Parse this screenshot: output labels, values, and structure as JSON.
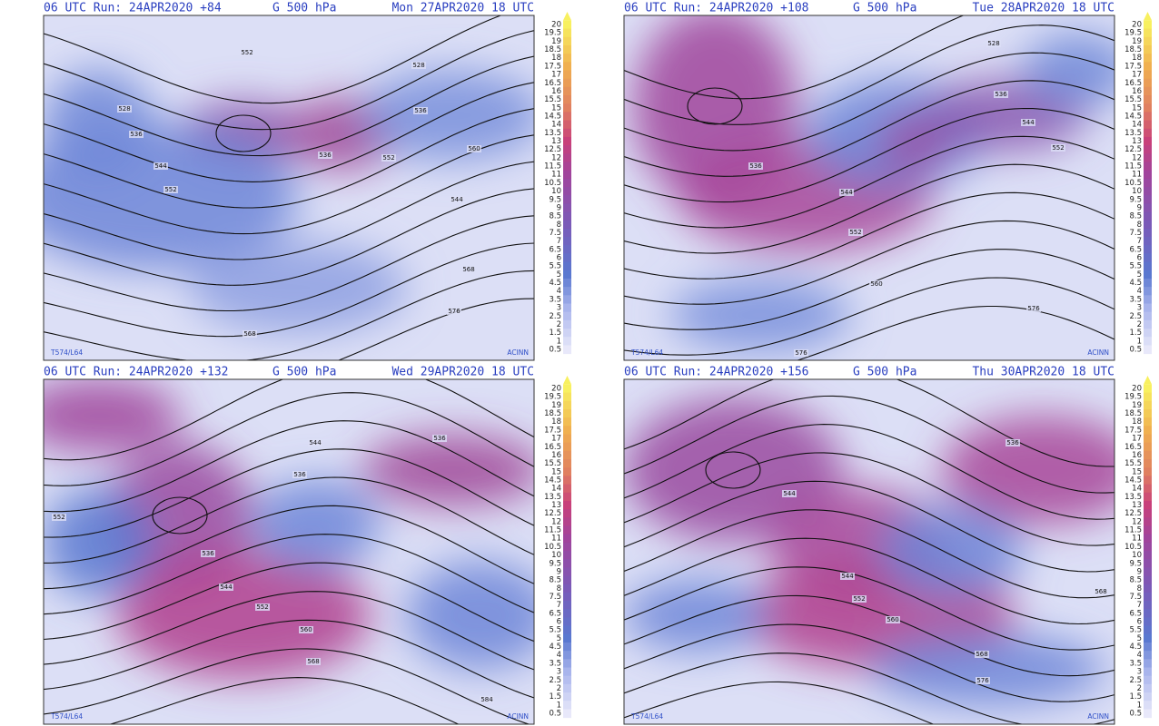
{
  "panels": [
    {
      "run": "06 UTC Run: 24APR2020 +84",
      "field": "G 500 hPa",
      "valid": "Mon 27APR2020 18 UTC",
      "contour_labels": [
        552,
        528,
        536,
        544,
        552,
        528,
        536,
        536,
        552,
        544,
        560,
        568,
        576,
        568
      ],
      "model": "T574/L64",
      "source": "ACINN"
    },
    {
      "run": "06 UTC Run: 24APR2020 +108",
      "field": "G 500 hPa",
      "valid": "Tue 28APR2020 18 UTC",
      "contour_labels": [
        528,
        536,
        544,
        552,
        536,
        544,
        552,
        560,
        576,
        576
      ],
      "model": "T574/L64",
      "source": "ACINN"
    },
    {
      "run": "06 UTC Run: 24APR2020 +132",
      "field": "G 500 hPa",
      "valid": "Wed 29APR2020 18 UTC",
      "contour_labels": [
        544,
        536,
        536,
        552,
        536,
        544,
        552,
        560,
        568,
        584
      ],
      "model": "T574/L64",
      "source": "ACINN"
    },
    {
      "run": "06 UTC Run: 24APR2020 +156",
      "field": "G 500 hPa",
      "valid": "Thu 30APR2020 18 UTC",
      "contour_labels": [
        544,
        536,
        544,
        552,
        560,
        568,
        576,
        568
      ],
      "model": "T574/L64",
      "source": "ACINN"
    }
  ],
  "colorbar_labels": [
    20,
    19.5,
    19,
    18.5,
    18,
    17.5,
    17,
    16.5,
    16,
    15.5,
    15,
    14.5,
    14,
    13.5,
    13,
    12.5,
    12,
    11.5,
    11,
    10.5,
    10,
    9.5,
    9,
    8.5,
    8,
    7.5,
    7,
    6.5,
    6,
    5.5,
    5,
    4.5,
    4,
    3.5,
    3,
    2.5,
    2,
    1.5,
    1,
    0.5
  ]
}
